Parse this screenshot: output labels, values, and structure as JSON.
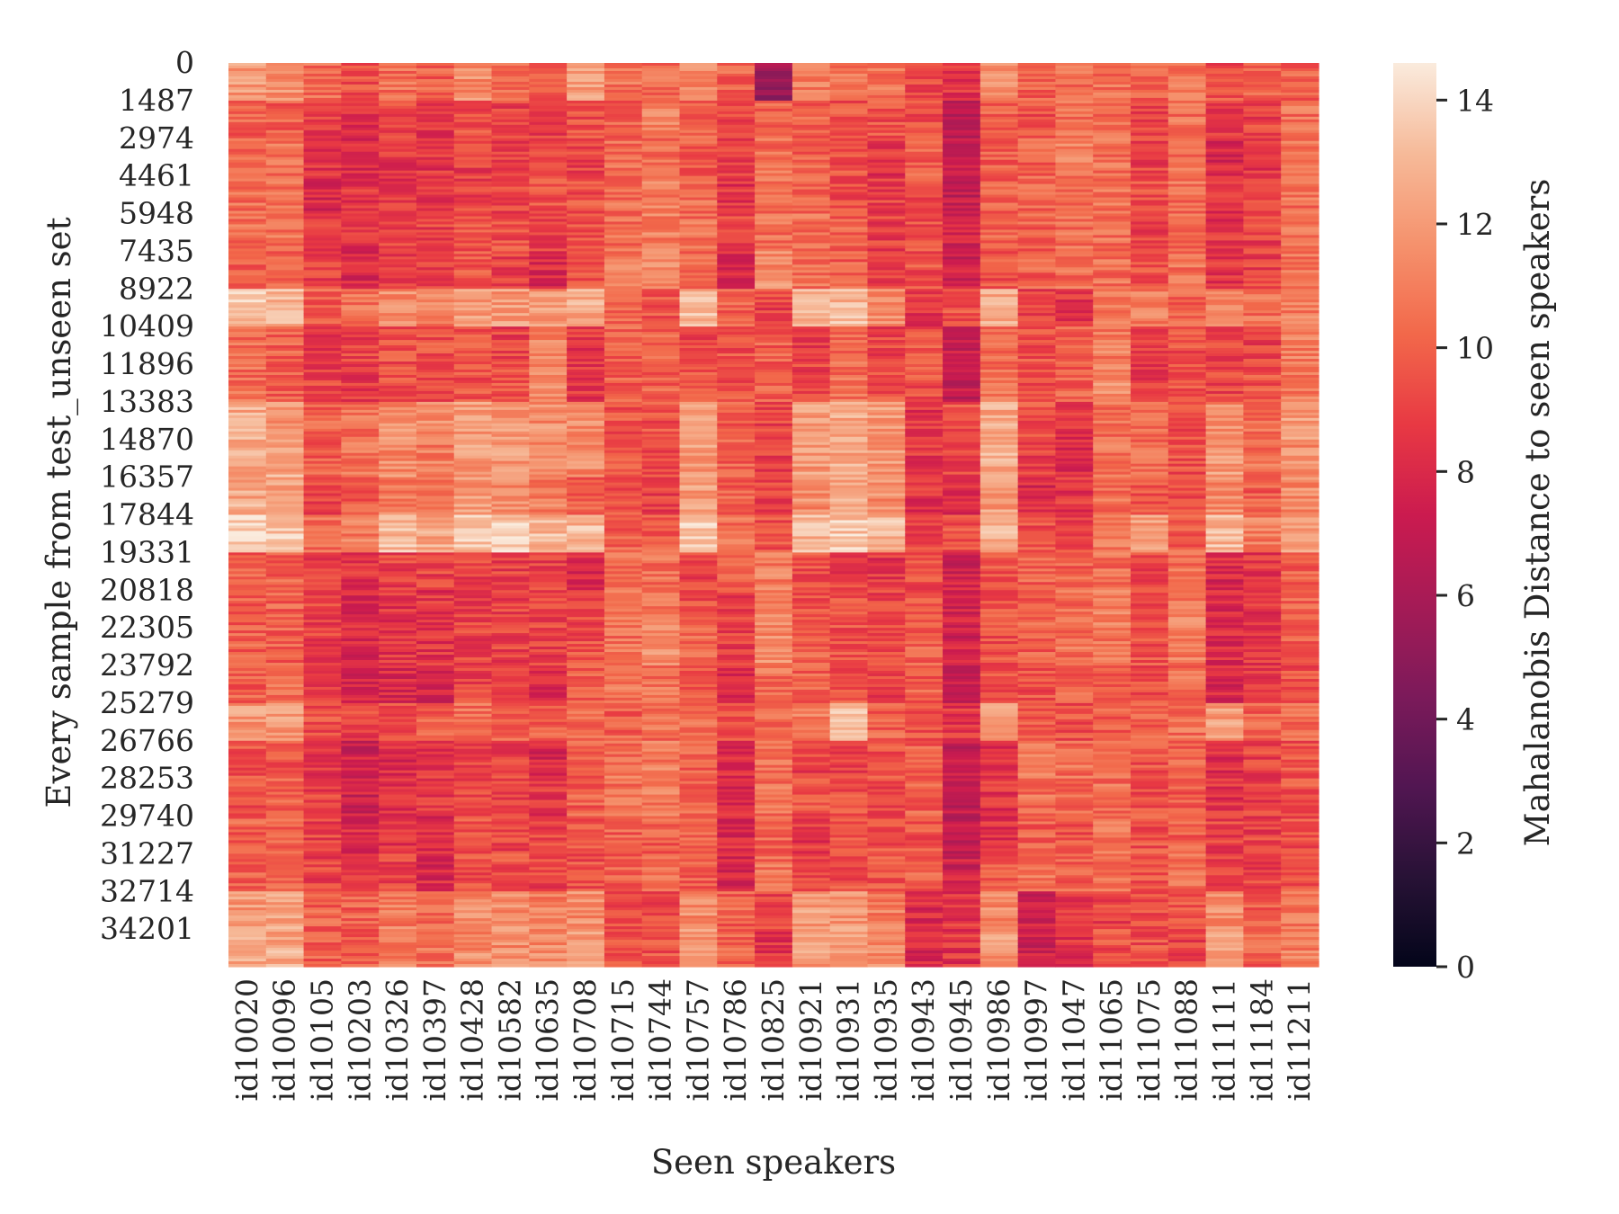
{
  "chart_data": {
    "type": "heatmap",
    "title": "",
    "xlabel": "Seen speakers",
    "ylabel": "Every sample from test_unseen set",
    "colorbar_label": "Mahalanobis Distance to seen speakers",
    "colormap": "rocket",
    "colorbar_range": [
      0,
      14.6
    ],
    "colorbar_ticks": [
      "0",
      "2",
      "4",
      "6",
      "8",
      "10",
      "12",
      "14"
    ],
    "x_categories": [
      "id10020",
      "id10096",
      "id10105",
      "id10203",
      "id10326",
      "id10397",
      "id10428",
      "id10582",
      "id10635",
      "id10708",
      "id10715",
      "id10744",
      "id10757",
      "id10786",
      "id10825",
      "id10921",
      "id10931",
      "id10935",
      "id10943",
      "id10945",
      "id10986",
      "id10997",
      "id11047",
      "id11065",
      "id11075",
      "id11088",
      "id11111",
      "id11184",
      "id11211"
    ],
    "y_tick_labels": [
      "0",
      "1487",
      "2974",
      "4461",
      "5948",
      "7435",
      "8922",
      "10409",
      "11896",
      "13383",
      "14870",
      "16357",
      "17844",
      "19331",
      "20818",
      "22305",
      "23792",
      "25279",
      "26766",
      "28253",
      "29740",
      "31227",
      "32714",
      "34201"
    ],
    "y_range": [
      0,
      35688
    ],
    "row_block_size": 1487,
    "column_means": [
      11.0,
      11.5,
      9.0,
      8.3,
      9.0,
      8.5,
      9.8,
      9.5,
      9.3,
      10.0,
      10.2,
      10.6,
      10.4,
      9.3,
      10.5,
      10.4,
      10.3,
      9.5,
      9.6,
      7.3,
      10.0,
      9.4,
      9.6,
      10.2,
      9.4,
      10.3,
      8.8,
      9.2,
      10.5
    ],
    "values": [
      [
        12.0,
        11.6,
        10.5,
        9.5,
        10.5,
        10.0,
        11.5,
        10.5,
        10.0,
        12.0,
        10.5,
        10.5,
        11.5,
        10.0,
        5.5,
        11.0,
        10.5,
        10.5,
        9.0,
        8.5,
        11.5,
        10.0,
        10.5,
        10.5,
        10.0,
        10.5,
        9.5,
        10.0,
        10.0
      ],
      [
        10.0,
        10.0,
        9.0,
        8.0,
        9.0,
        8.5,
        9.5,
        9.0,
        9.0,
        9.5,
        10.0,
        11.0,
        10.0,
        9.0,
        10.0,
        10.0,
        9.5,
        9.5,
        9.5,
        7.0,
        10.0,
        9.5,
        10.5,
        10.5,
        9.0,
        10.5,
        8.5,
        9.0,
        10.5
      ],
      [
        10.0,
        10.5,
        8.5,
        8.0,
        8.5,
        8.5,
        9.0,
        9.0,
        9.5,
        9.0,
        10.5,
        10.5,
        10.0,
        9.0,
        10.5,
        10.0,
        9.5,
        8.5,
        10.0,
        7.5,
        10.0,
        10.0,
        11.0,
        10.5,
        9.0,
        10.5,
        8.0,
        8.5,
        10.5
      ],
      [
        10.5,
        10.5,
        8.0,
        8.5,
        8.5,
        8.5,
        9.0,
        9.0,
        9.5,
        9.5,
        10.5,
        11.0,
        10.5,
        8.5,
        10.5,
        10.0,
        9.5,
        9.0,
        9.5,
        7.0,
        10.0,
        10.0,
        10.5,
        10.5,
        9.5,
        10.5,
        8.5,
        9.0,
        10.5
      ],
      [
        10.5,
        10.5,
        8.5,
        8.5,
        9.0,
        9.0,
        9.5,
        9.5,
        9.0,
        9.5,
        10.5,
        11.0,
        10.5,
        9.0,
        10.5,
        10.5,
        10.0,
        9.0,
        9.5,
        7.5,
        10.0,
        10.0,
        10.5,
        10.5,
        9.0,
        10.5,
        8.5,
        9.0,
        10.5
      ],
      [
        10.0,
        10.0,
        9.0,
        8.0,
        9.0,
        9.0,
        9.5,
        9.0,
        8.0,
        9.5,
        11.0,
        11.5,
        10.5,
        8.0,
        11.5,
        10.5,
        10.0,
        9.0,
        9.5,
        7.5,
        9.5,
        10.0,
        10.5,
        10.5,
        9.5,
        10.5,
        8.5,
        9.0,
        10.5
      ],
      [
        13.5,
        13.0,
        10.0,
        10.5,
        11.5,
        11.0,
        12.0,
        12.0,
        12.0,
        12.5,
        10.0,
        9.5,
        13.0,
        10.0,
        9.0,
        12.5,
        13.0,
        11.5,
        8.5,
        9.5,
        12.5,
        9.0,
        8.5,
        10.5,
        11.0,
        10.0,
        11.5,
        10.5,
        11.0
      ],
      [
        10.5,
        10.0,
        8.5,
        9.0,
        9.5,
        9.5,
        9.5,
        9.0,
        11.0,
        8.5,
        10.0,
        10.0,
        9.0,
        9.5,
        10.0,
        9.0,
        10.5,
        9.0,
        9.5,
        7.0,
        10.5,
        9.5,
        10.0,
        11.0,
        8.5,
        9.5,
        9.0,
        9.0,
        11.0
      ],
      [
        10.5,
        10.0,
        9.0,
        8.5,
        9.5,
        9.0,
        9.5,
        9.5,
        11.5,
        8.5,
        10.0,
        10.0,
        9.5,
        9.5,
        10.0,
        9.0,
        10.5,
        9.5,
        9.5,
        7.0,
        10.5,
        9.5,
        10.0,
        11.5,
        8.5,
        9.5,
        9.0,
        9.5,
        11.0
      ],
      [
        12.5,
        12.0,
        10.0,
        10.5,
        11.5,
        11.5,
        12.0,
        12.0,
        11.5,
        11.5,
        9.5,
        9.5,
        12.0,
        10.0,
        9.0,
        12.0,
        12.5,
        12.0,
        8.5,
        9.5,
        12.5,
        9.5,
        8.5,
        10.5,
        10.5,
        9.5,
        11.5,
        10.5,
        12.0
      ],
      [
        12.5,
        12.5,
        10.0,
        10.5,
        11.5,
        11.0,
        12.0,
        12.0,
        11.5,
        11.5,
        9.5,
        9.5,
        12.0,
        10.0,
        9.0,
        12.0,
        12.5,
        12.0,
        8.5,
        9.0,
        12.5,
        9.0,
        8.0,
        10.5,
        10.5,
        9.5,
        12.0,
        10.5,
        11.5
      ],
      [
        12.5,
        12.5,
        9.0,
        10.0,
        11.0,
        10.5,
        12.0,
        11.5,
        11.0,
        10.0,
        9.5,
        9.0,
        12.0,
        10.0,
        9.0,
        11.5,
        12.5,
        11.5,
        8.5,
        8.0,
        12.0,
        8.0,
        8.5,
        10.5,
        9.5,
        9.5,
        11.5,
        10.0,
        11.5
      ],
      [
        14.0,
        13.5,
        10.5,
        11.0,
        13.0,
        12.5,
        13.5,
        13.5,
        13.0,
        13.0,
        10.0,
        10.0,
        13.5,
        10.5,
        9.5,
        13.0,
        13.5,
        13.0,
        9.0,
        9.5,
        13.0,
        9.5,
        9.0,
        11.0,
        12.0,
        10.0,
        13.0,
        11.0,
        12.0
      ],
      [
        10.0,
        10.0,
        9.0,
        8.5,
        9.0,
        9.0,
        9.0,
        9.0,
        9.0,
        8.0,
        10.5,
        10.5,
        9.0,
        10.0,
        11.0,
        9.5,
        9.0,
        8.5,
        9.5,
        7.5,
        9.5,
        10.0,
        10.0,
        10.5,
        9.0,
        10.5,
        8.0,
        8.5,
        10.0
      ],
      [
        10.0,
        10.0,
        9.0,
        8.0,
        8.5,
        8.5,
        9.0,
        9.0,
        9.0,
        9.0,
        10.5,
        11.0,
        9.5,
        9.0,
        11.5,
        9.5,
        9.5,
        9.0,
        9.5,
        7.5,
        9.5,
        10.0,
        10.5,
        11.0,
        9.0,
        11.0,
        8.0,
        8.5,
        10.0
      ],
      [
        10.0,
        10.0,
        9.0,
        8.0,
        8.5,
        8.5,
        9.0,
        9.0,
        9.0,
        9.5,
        10.5,
        11.5,
        10.5,
        9.0,
        11.5,
        10.0,
        9.5,
        9.0,
        10.0,
        7.5,
        9.5,
        10.0,
        10.5,
        10.5,
        9.5,
        11.0,
        8.0,
        8.5,
        10.0
      ],
      [
        10.0,
        10.5,
        8.5,
        7.5,
        8.0,
        7.5,
        9.0,
        9.0,
        8.0,
        10.0,
        10.5,
        10.5,
        10.0,
        8.0,
        10.5,
        10.0,
        9.5,
        9.0,
        10.0,
        7.5,
        9.5,
        9.5,
        10.0,
        10.0,
        9.5,
        10.5,
        8.0,
        8.5,
        9.5
      ],
      [
        12.0,
        12.0,
        9.5,
        9.0,
        9.5,
        10.0,
        10.5,
        10.0,
        10.0,
        10.5,
        10.0,
        10.5,
        10.5,
        9.5,
        10.5,
        11.0,
        13.0,
        10.0,
        9.5,
        8.5,
        12.0,
        10.0,
        9.5,
        10.0,
        10.0,
        10.5,
        12.0,
        10.0,
        10.5
      ],
      [
        9.5,
        9.5,
        8.5,
        7.5,
        8.0,
        8.5,
        9.0,
        9.0,
        8.0,
        10.0,
        10.5,
        11.0,
        10.0,
        8.0,
        10.5,
        9.0,
        9.0,
        9.5,
        10.0,
        7.0,
        8.5,
        11.0,
        10.5,
        10.5,
        9.5,
        10.0,
        8.0,
        9.0,
        9.5
      ],
      [
        9.5,
        10.0,
        9.0,
        7.5,
        8.5,
        8.5,
        9.0,
        9.0,
        8.5,
        10.0,
        10.5,
        11.0,
        10.0,
        8.0,
        10.5,
        9.5,
        9.5,
        9.0,
        10.0,
        7.0,
        8.5,
        10.5,
        10.0,
        10.5,
        9.5,
        10.0,
        8.5,
        9.0,
        9.5
      ],
      [
        10.0,
        10.0,
        9.0,
        8.0,
        8.5,
        8.0,
        9.5,
        9.0,
        9.0,
        9.5,
        10.0,
        10.0,
        10.0,
        8.0,
        10.0,
        8.5,
        9.5,
        9.5,
        9.5,
        7.0,
        8.5,
        10.0,
        9.5,
        10.5,
        9.5,
        10.0,
        9.0,
        9.0,
        9.5
      ],
      [
        10.0,
        10.0,
        9.0,
        8.5,
        9.0,
        8.0,
        9.5,
        9.5,
        9.0,
        9.5,
        10.0,
        10.5,
        10.0,
        8.0,
        10.5,
        9.5,
        9.5,
        9.5,
        10.0,
        7.5,
        9.5,
        10.5,
        10.0,
        10.5,
        9.5,
        10.5,
        9.0,
        9.0,
        9.5
      ],
      [
        12.0,
        12.5,
        10.0,
        10.0,
        11.0,
        10.5,
        11.5,
        11.5,
        11.0,
        11.5,
        9.5,
        9.0,
        11.5,
        10.0,
        9.0,
        12.0,
        12.0,
        11.0,
        8.0,
        8.5,
        11.5,
        7.5,
        8.5,
        9.0,
        9.5,
        9.5,
        11.5,
        10.0,
        11.0
      ],
      [
        12.5,
        12.5,
        10.0,
        10.0,
        11.0,
        10.5,
        11.5,
        11.5,
        11.5,
        12.0,
        9.5,
        9.5,
        12.0,
        10.0,
        8.5,
        12.0,
        12.0,
        11.5,
        8.0,
        8.5,
        12.0,
        7.5,
        8.5,
        9.5,
        9.5,
        9.0,
        12.0,
        10.0,
        11.0
      ]
    ]
  }
}
